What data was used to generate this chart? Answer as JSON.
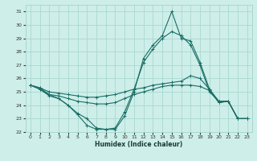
{
  "xlabel": "Humidex (Indice chaleur)",
  "bg_color": "#ceeee9",
  "grid_color": "#a8d8d0",
  "line_color": "#1a6e65",
  "xlim": [
    -0.5,
    23.5
  ],
  "ylim": [
    22,
    31.5
  ],
  "yticks": [
    22,
    23,
    24,
    25,
    26,
    27,
    28,
    29,
    30,
    31
  ],
  "xticks": [
    0,
    1,
    2,
    3,
    4,
    5,
    6,
    7,
    8,
    9,
    10,
    11,
    12,
    13,
    14,
    15,
    16,
    17,
    18,
    19,
    20,
    21,
    22,
    23
  ],
  "series": [
    {
      "x": [
        0,
        1,
        2,
        3,
        4,
        5,
        6,
        7,
        8,
        9,
        10,
        11,
        12,
        13,
        14,
        15,
        16,
        17,
        18,
        19,
        20,
        21,
        22,
        23
      ],
      "y": [
        25.5,
        25.3,
        25.0,
        24.9,
        24.8,
        24.7,
        24.6,
        24.6,
        24.7,
        24.8,
        25.0,
        25.2,
        25.3,
        25.5,
        25.6,
        25.7,
        25.8,
        26.2,
        26.0,
        25.2,
        24.2,
        24.3,
        23.0,
        23.0
      ]
    },
    {
      "x": [
        0,
        1,
        2,
        3,
        4,
        5,
        6,
        7,
        8,
        9,
        10,
        11,
        12,
        13,
        14,
        15,
        16,
        17,
        18,
        19,
        20,
        21,
        22,
        23
      ],
      "y": [
        25.5,
        25.3,
        24.8,
        24.7,
        24.5,
        24.3,
        24.2,
        24.1,
        24.1,
        24.2,
        24.5,
        24.8,
        25.0,
        25.2,
        25.4,
        25.5,
        25.5,
        25.5,
        25.4,
        25.1,
        24.2,
        24.3,
        23.0,
        23.0
      ]
    },
    {
      "x": [
        0,
        1,
        2,
        3,
        4,
        5,
        6,
        7,
        8,
        9,
        10,
        11,
        12,
        13,
        14,
        15,
        16,
        17,
        18,
        19,
        20,
        21,
        22,
        23
      ],
      "y": [
        25.5,
        25.2,
        24.8,
        24.5,
        24.0,
        23.4,
        23.0,
        22.3,
        22.2,
        22.2,
        23.2,
        25.0,
        27.5,
        28.5,
        29.2,
        31.0,
        29.0,
        28.8,
        27.2,
        25.2,
        24.3,
        24.3,
        23.0,
        23.0
      ]
    },
    {
      "x": [
        0,
        1,
        2,
        3,
        4,
        5,
        6,
        7,
        8,
        9,
        10,
        11,
        12,
        13,
        14,
        15,
        16,
        17,
        18,
        19,
        20,
        21,
        22,
        23
      ],
      "y": [
        25.5,
        25.2,
        24.7,
        24.5,
        24.0,
        23.3,
        22.5,
        22.2,
        22.2,
        22.3,
        23.5,
        25.2,
        27.2,
        28.2,
        29.0,
        29.5,
        29.2,
        28.5,
        27.0,
        25.0,
        24.3,
        24.3,
        23.0,
        23.0
      ]
    }
  ]
}
